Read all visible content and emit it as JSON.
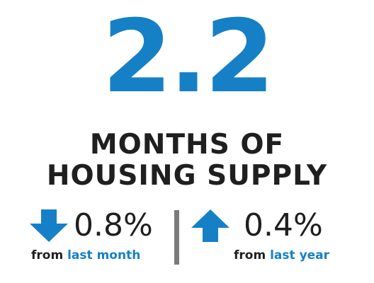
{
  "headline": {
    "value": "2.2",
    "line1": "MONTHS OF",
    "line2": "HOUSING SUPPLY"
  },
  "stats": [
    {
      "direction": "down",
      "icon": "arrow-down-icon",
      "value": "0.8%",
      "caption_prefix": "from",
      "caption_period": "last month"
    },
    {
      "direction": "up",
      "icon": "arrow-up-icon",
      "value": "0.4%",
      "caption_prefix": "from",
      "caption_period": "last year"
    }
  ],
  "colors": {
    "accent": "#1580c6",
    "text": "#1f1f1f",
    "divider": "#7a7a7a"
  }
}
